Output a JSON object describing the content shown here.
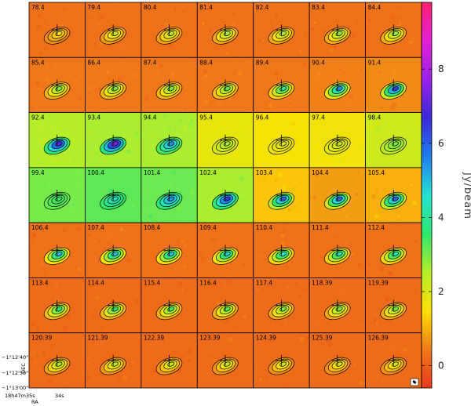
{
  "chart_data": {
    "type": "heatmap",
    "layout": {
      "rows": 7,
      "cols": 7
    },
    "panel_labels": [
      "78.4",
      "79.4",
      "80.4",
      "81.4",
      "82.4",
      "83.4",
      "84.4",
      "85.4",
      "86.4",
      "87.4",
      "88.4",
      "89.4",
      "90.4",
      "91.4",
      "92.4",
      "93.4",
      "94.4",
      "95.4",
      "96.4",
      "97.4",
      "98.4",
      "99.4",
      "100.4",
      "101.4",
      "102.4",
      "103.4",
      "104.4",
      "105.4",
      "106.4",
      "107.4",
      "108.4",
      "109.4",
      "110.4",
      "111.4",
      "112.4",
      "113.4",
      "114.4",
      "115.4",
      "116.4",
      "117.4",
      "118.39",
      "119.39",
      "120.39",
      "121.39",
      "122.39",
      "123.39",
      "124.39",
      "125.39",
      "126.39"
    ],
    "background_levels": [
      0.3,
      0.3,
      0.3,
      0.3,
      0.3,
      0.3,
      0.3,
      0.4,
      0.4,
      0.4,
      0.4,
      0.4,
      0.5,
      0.6,
      2.5,
      2.6,
      2.6,
      1.8,
      1.6,
      1.7,
      2.2,
      3.0,
      3.2,
      3.1,
      2.6,
      1.2,
      0.8,
      1.0,
      0.3,
      0.3,
      0.3,
      0.3,
      0.3,
      0.3,
      0.3,
      0.2,
      0.2,
      0.2,
      0.2,
      0.2,
      0.2,
      0.2,
      0.2,
      0.2,
      0.2,
      0.2,
      0.2,
      0.2,
      0.2
    ],
    "peak_levels": [
      1.6,
      2.2,
      2.4,
      2.6,
      2.6,
      2.8,
      2.8,
      3.0,
      3.0,
      3.0,
      3.2,
      4.0,
      5.5,
      6.5,
      7.0,
      7.5,
      5.5,
      2.6,
      2.0,
      2.2,
      3.0,
      3.5,
      4.5,
      5.5,
      6.5,
      6.0,
      6.0,
      6.0,
      5.0,
      5.0,
      5.0,
      4.8,
      4.6,
      4.4,
      4.4,
      3.8,
      3.6,
      3.4,
      3.2,
      3.0,
      3.0,
      3.0,
      2.6,
      2.4,
      2.3,
      2.2,
      2.1,
      2.0,
      2.0
    ],
    "colorbar": {
      "label": "Jy/beam",
      "ticks": [
        "0",
        "2",
        "4",
        "6",
        "8"
      ],
      "range": [
        -0.6,
        9.8
      ]
    },
    "axes": {
      "ylabel": "DEC",
      "xlabel": "RA",
      "y_ticks": [
        "−1°12'40\"",
        "−1°12'50\"",
        "−1°13'00\""
      ],
      "x_ticks": [
        "18h47m35s",
        "34s"
      ]
    }
  }
}
